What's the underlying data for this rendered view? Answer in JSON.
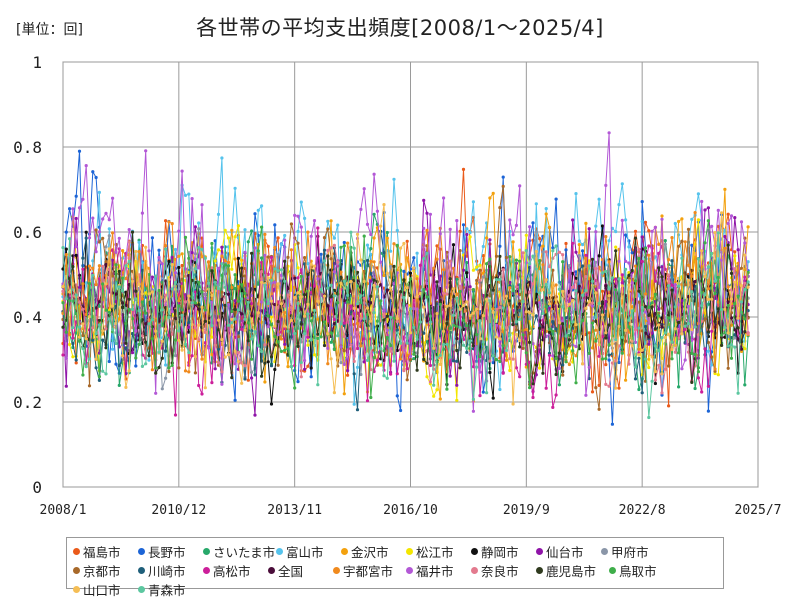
{
  "unit_label": "[単位：回]",
  "chart_data": {
    "type": "line",
    "title": "各世帯の平均支出頻度[2008/1～2025/4]",
    "xlabel": "",
    "ylabel": "",
    "x_start": "2008/1",
    "x_end": "2025/7",
    "x_ticks": [
      "2008/1",
      "2010/12",
      "2013/11",
      "2016/10",
      "2019/9",
      "2022/8",
      "2025/7"
    ],
    "y_ticks": [
      "0",
      "0.2",
      "0.4",
      "0.6",
      "0.8",
      "1"
    ],
    "ylim": [
      0,
      1
    ],
    "grid": true,
    "legend_position": "bottom",
    "series": [
      {
        "name": "福島市",
        "color": "#ea5a1a",
        "mean": 0.44,
        "amp": 0.16
      },
      {
        "name": "長野市",
        "color": "#1c64d6",
        "mean": 0.46,
        "amp": 0.18
      },
      {
        "name": "さいたま市",
        "color": "#27a86a",
        "mean": 0.42,
        "amp": 0.14
      },
      {
        "name": "富山市",
        "color": "#55c3ec",
        "mean": 0.47,
        "amp": 0.18
      },
      {
        "name": "金沢市",
        "color": "#f3a10e",
        "mean": 0.45,
        "amp": 0.16
      },
      {
        "name": "松江市",
        "color": "#f3e600",
        "mean": 0.4,
        "amp": 0.13
      },
      {
        "name": "静岡市",
        "color": "#111111",
        "mean": 0.43,
        "amp": 0.13
      },
      {
        "name": "仙台市",
        "color": "#8f14a8",
        "mean": 0.44,
        "amp": 0.15
      },
      {
        "name": "甲府市",
        "color": "#8a96a8",
        "mean": 0.41,
        "amp": 0.12
      },
      {
        "name": "京都市",
        "color": "#a8692a",
        "mean": 0.42,
        "amp": 0.13
      },
      {
        "name": "川崎市",
        "color": "#1f5f7a",
        "mean": 0.38,
        "amp": 0.12
      },
      {
        "name": "高松市",
        "color": "#cc1f9a",
        "mean": 0.4,
        "amp": 0.14
      },
      {
        "name": "全国",
        "color": "#4a0d3a",
        "mean": 0.43,
        "amp": 0.06
      },
      {
        "name": "宇都宮市",
        "color": "#f08a1e",
        "mean": 0.44,
        "amp": 0.14
      },
      {
        "name": "福井市",
        "color": "#b358d6",
        "mean": 0.49,
        "amp": 0.19
      },
      {
        "name": "奈良市",
        "color": "#e37a8e",
        "mean": 0.41,
        "amp": 0.12
      },
      {
        "name": "鹿児島市",
        "color": "#2f3a1e",
        "mean": 0.4,
        "amp": 0.12
      },
      {
        "name": "鳥取市",
        "color": "#3fae4a",
        "mean": 0.41,
        "amp": 0.13
      },
      {
        "name": "山口市",
        "color": "#f5be55",
        "mean": 0.42,
        "amp": 0.13
      },
      {
        "name": "青森市",
        "color": "#5cc7a0",
        "mean": 0.42,
        "amp": 0.13
      }
    ]
  }
}
